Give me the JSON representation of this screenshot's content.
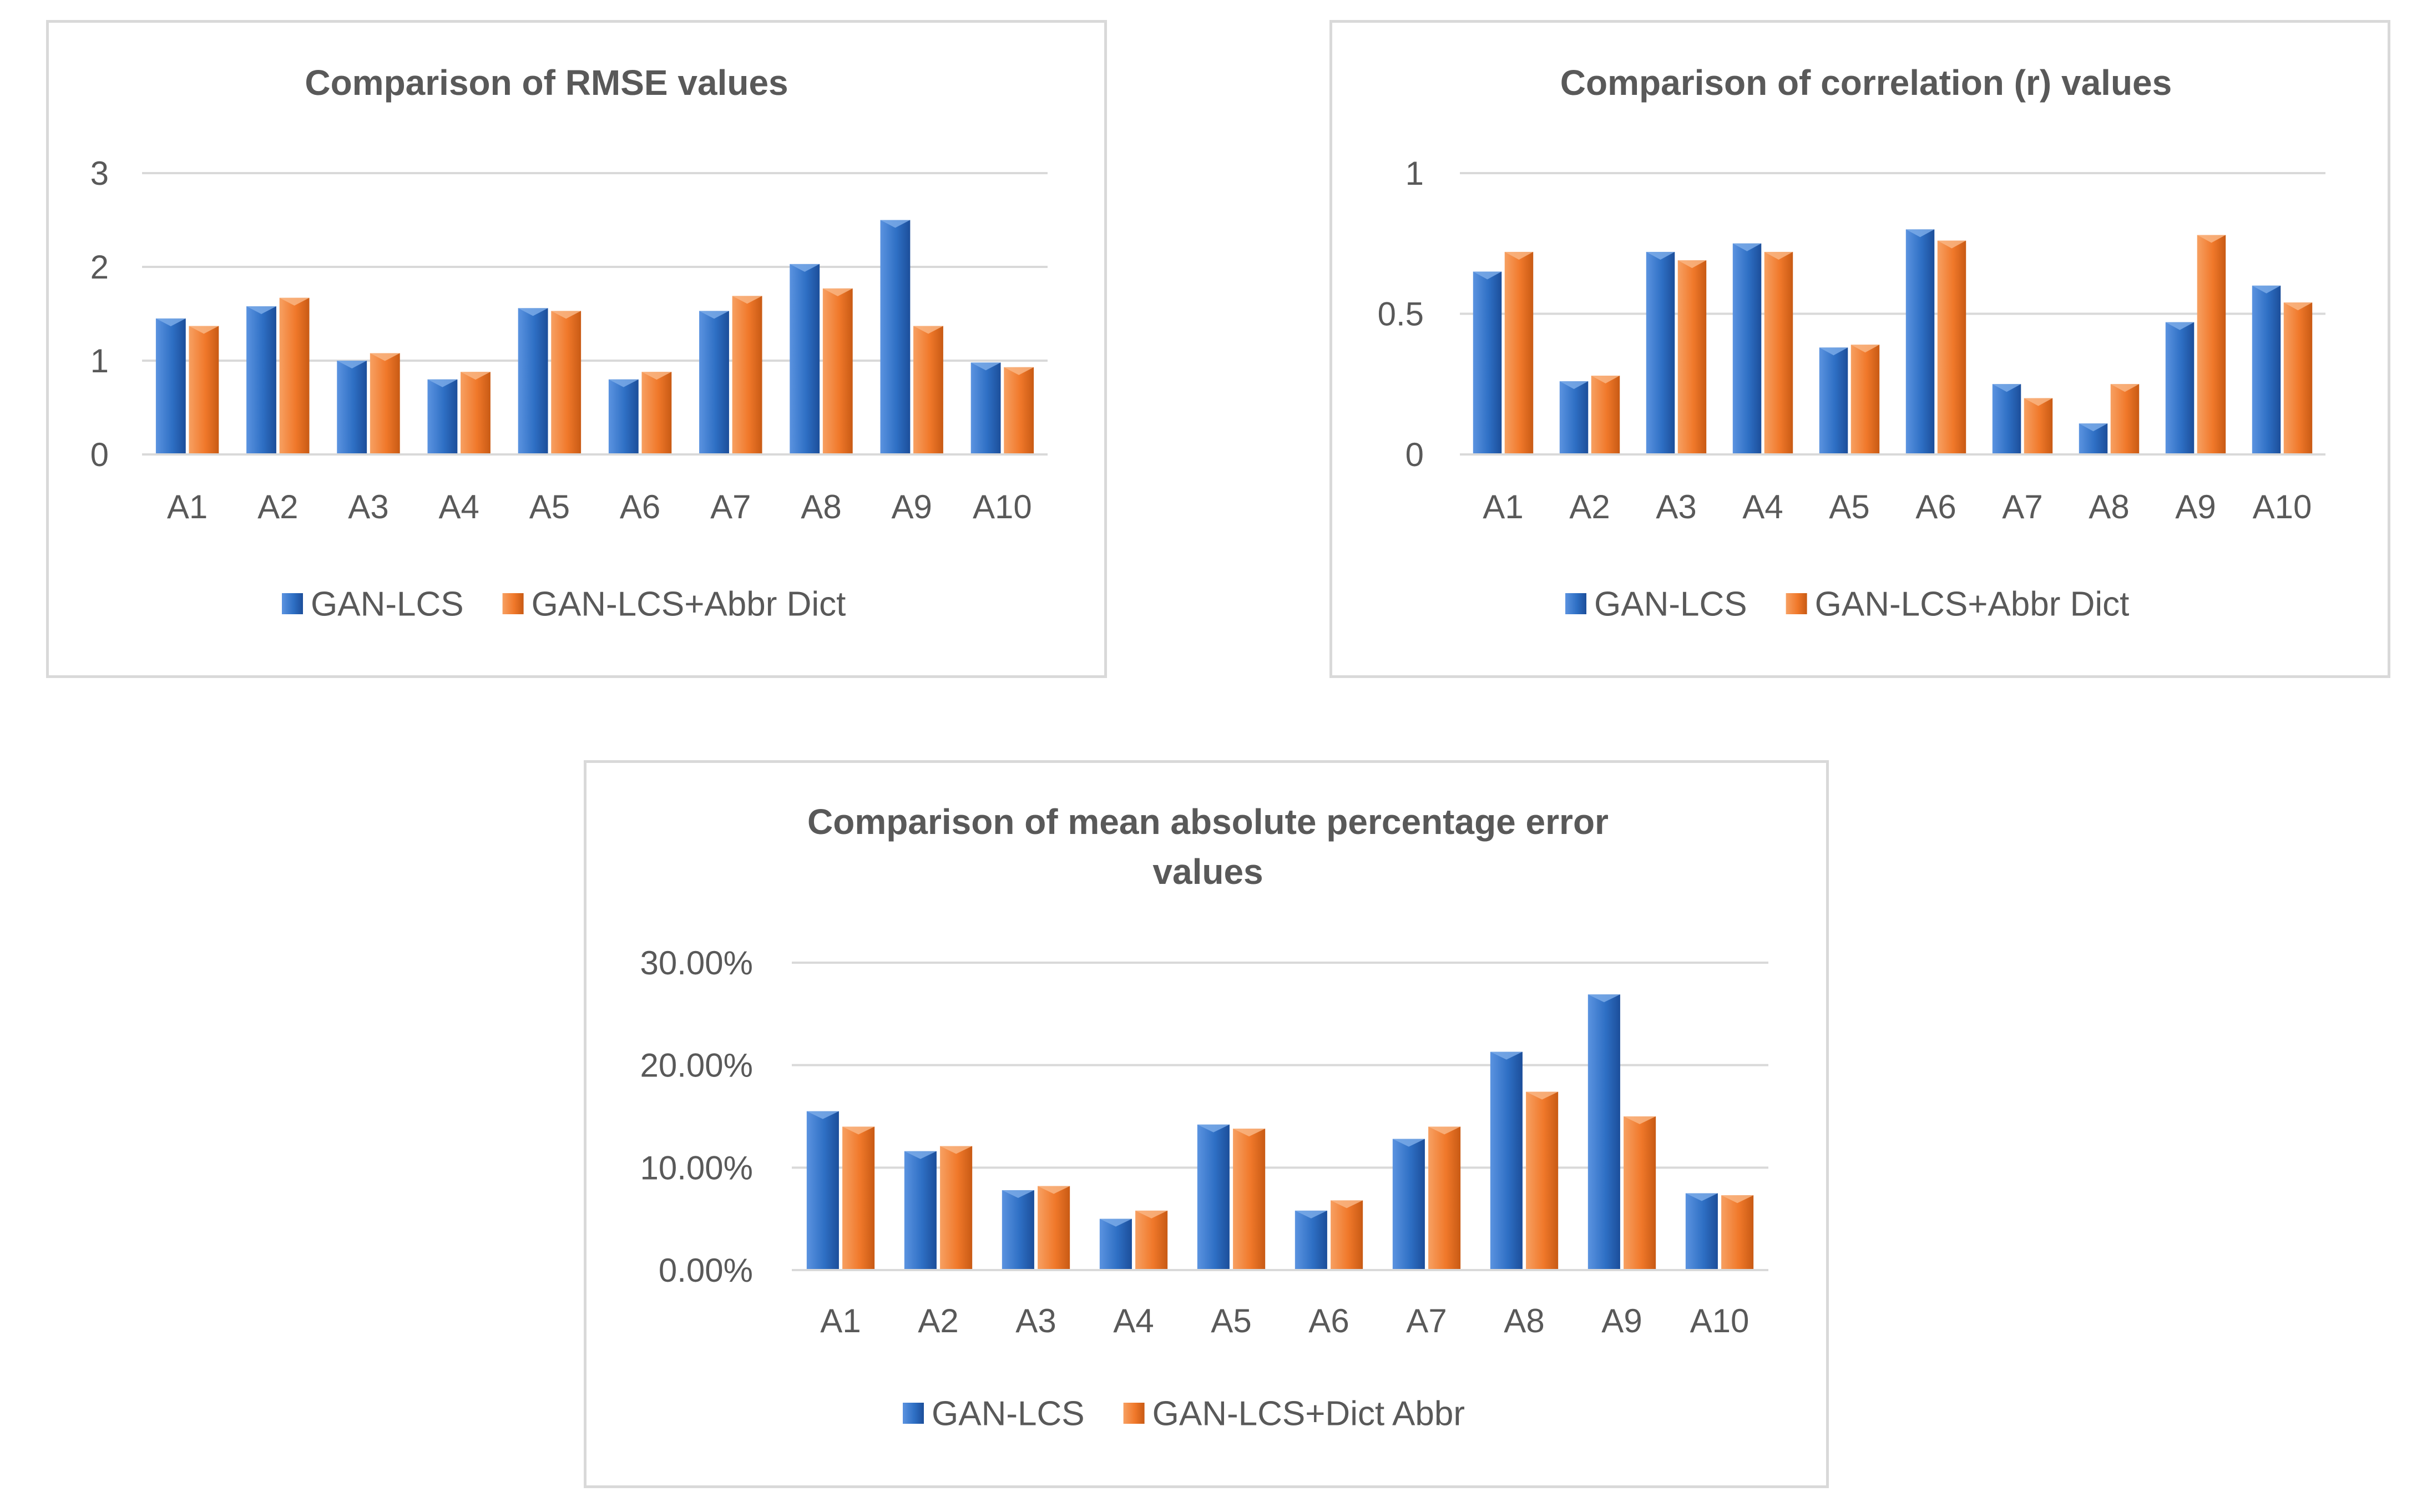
{
  "chart_data": [
    {
      "type": "bar",
      "title": "Comparison of RMSE values",
      "categories": [
        "A1",
        "A2",
        "A3",
        "A4",
        "A5",
        "A6",
        "A7",
        "A8",
        "A9",
        "A10"
      ],
      "series": [
        {
          "name": "GAN-LCS",
          "values": [
            1.45,
            1.58,
            1.0,
            0.8,
            1.56,
            0.8,
            1.53,
            2.03,
            2.5,
            0.98
          ]
        },
        {
          "name": "GAN-LCS+Abbr Dict",
          "values": [
            1.37,
            1.67,
            1.08,
            0.88,
            1.53,
            0.88,
            1.69,
            1.77,
            1.37,
            0.93
          ]
        }
      ],
      "ylim": [
        0,
        3
      ],
      "yticks": [
        0,
        1,
        2,
        3
      ],
      "ytick_labels": [
        "0",
        "1",
        "2",
        "3"
      ],
      "grid": true,
      "legend_position": "bottom"
    },
    {
      "type": "bar",
      "title": "Comparison of correlation (r) values",
      "categories": [
        "A1",
        "A2",
        "A3",
        "A4",
        "A5",
        "A6",
        "A7",
        "A8",
        "A9",
        "A10"
      ],
      "series": [
        {
          "name": "GAN-LCS",
          "values": [
            0.65,
            0.26,
            0.72,
            0.75,
            0.38,
            0.8,
            0.25,
            0.11,
            0.47,
            0.6
          ]
        },
        {
          "name": "GAN-LCS+Abbr Dict",
          "values": [
            0.72,
            0.28,
            0.69,
            0.72,
            0.39,
            0.76,
            0.2,
            0.25,
            0.78,
            0.54
          ]
        }
      ],
      "ylim": [
        0,
        1
      ],
      "yticks": [
        0,
        0.5,
        1
      ],
      "ytick_labels": [
        "0",
        "0.5",
        "1"
      ],
      "grid": true,
      "legend_position": "bottom"
    },
    {
      "type": "bar",
      "title": "Comparison of mean absolute percentage error values",
      "title_lines": [
        "Comparison of mean absolute percentage error",
        "values"
      ],
      "categories": [
        "A1",
        "A2",
        "A3",
        "A4",
        "A5",
        "A6",
        "A7",
        "A8",
        "A9",
        "A10"
      ],
      "series": [
        {
          "name": "GAN-LCS",
          "values": [
            15.5,
            11.6,
            7.8,
            5.0,
            14.2,
            5.8,
            12.8,
            21.3,
            26.9,
            7.5
          ]
        },
        {
          "name": "GAN-LCS+Dict Abbr",
          "values": [
            14.0,
            12.1,
            8.2,
            5.8,
            13.8,
            6.8,
            14.0,
            17.4,
            15.0,
            7.3
          ]
        }
      ],
      "ylim": [
        0,
        30
      ],
      "yticks": [
        0,
        10,
        20,
        30
      ],
      "ytick_labels": [
        "0.00%",
        "10.00%",
        "20.00%",
        "30.00%"
      ],
      "grid": true,
      "legend_position": "bottom"
    }
  ],
  "colors": {
    "series_blue": "#2e6fc4",
    "series_blue_dark": "#1c4e9a",
    "series_orange": "#f0782a",
    "series_orange_dark": "#c85a14",
    "gridline": "#d9d9d9",
    "text": "#595959"
  }
}
